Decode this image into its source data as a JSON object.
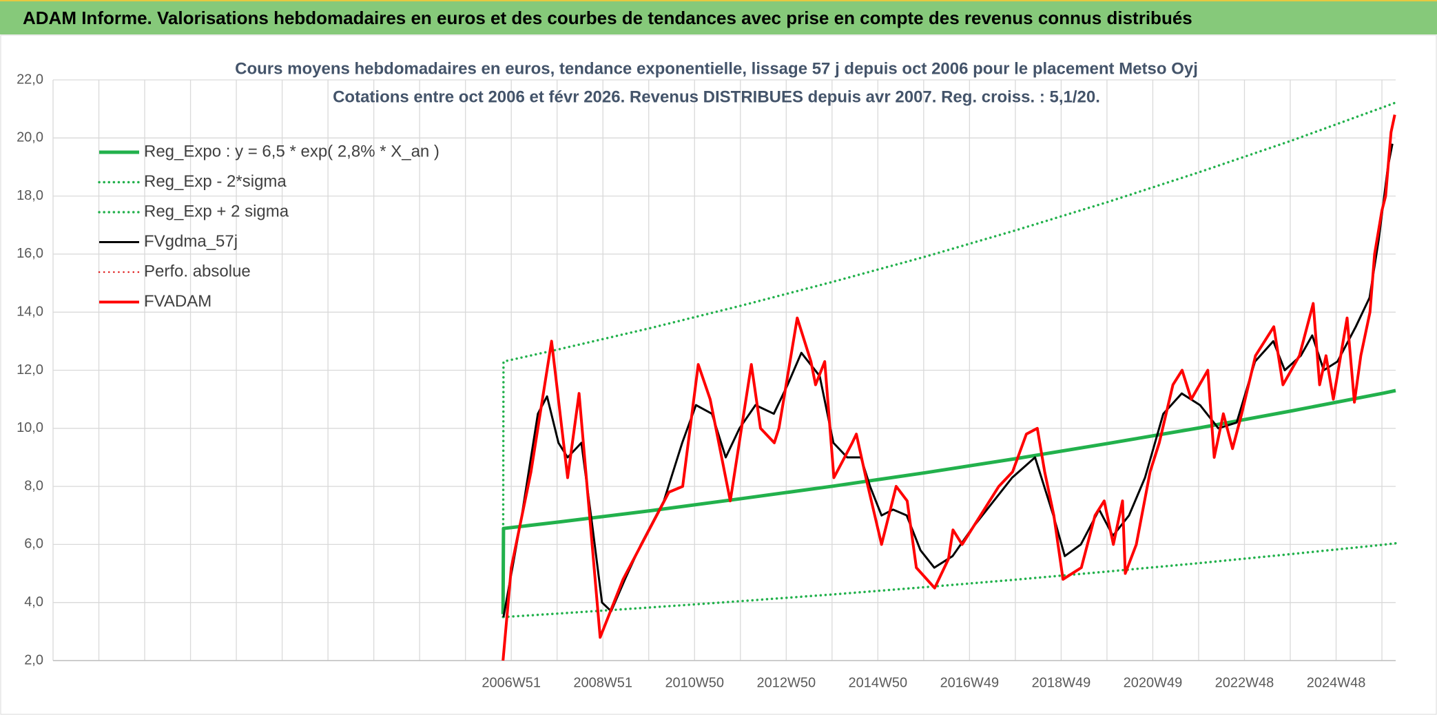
{
  "header": {
    "title": "ADAM Informe. Valorisations hebdomadaires en euros et des courbes de tendances avec prise en compte des revenus connus distribués"
  },
  "chart_data": {
    "type": "line",
    "title": "Cours moyens hebdomadaires en euros, tendance exponentielle, lissage 57 j depuis oct 2006 pour le placement Metso Oyj",
    "subtitle": "Cotations entre oct 2006 et févr 2026. Revenus DISTRIBUES depuis avr 2007. Reg. croiss. : 5,1/20.",
    "xlim": [
      1996.97,
      2026.27
    ],
    "ylim": [
      2,
      22
    ],
    "yticks": [
      {
        "value": 2,
        "label": "2,0"
      },
      {
        "value": 4,
        "label": "4,0"
      },
      {
        "value": 6,
        "label": "6,0"
      },
      {
        "value": 8,
        "label": "8,0"
      },
      {
        "value": 10,
        "label": "10,0"
      },
      {
        "value": 12,
        "label": "12,0"
      },
      {
        "value": 14,
        "label": "14,0"
      },
      {
        "value": 16,
        "label": "16,0"
      },
      {
        "value": 18,
        "label": "18,0"
      },
      {
        "value": 20,
        "label": "20,0"
      },
      {
        "value": 22,
        "label": "22,0"
      }
    ],
    "xticks": [
      {
        "value": 1996.97,
        "label": null
      },
      {
        "value": 1997.97,
        "label": null
      },
      {
        "value": 1998.97,
        "label": null
      },
      {
        "value": 1999.97,
        "label": null
      },
      {
        "value": 2000.97,
        "label": null
      },
      {
        "value": 2001.97,
        "label": null
      },
      {
        "value": 2002.97,
        "label": null
      },
      {
        "value": 2003.97,
        "label": null
      },
      {
        "value": 2004.97,
        "label": null
      },
      {
        "value": 2005.97,
        "label": null
      },
      {
        "value": 2006.97,
        "label": "2006W51"
      },
      {
        "value": 2007.97,
        "label": null
      },
      {
        "value": 2008.97,
        "label": "2008W51"
      },
      {
        "value": 2009.97,
        "label": null
      },
      {
        "value": 2010.97,
        "label": "2010W50"
      },
      {
        "value": 2011.97,
        "label": null
      },
      {
        "value": 2012.97,
        "label": "2012W50"
      },
      {
        "value": 2013.97,
        "label": null
      },
      {
        "value": 2014.97,
        "label": "2014W50"
      },
      {
        "value": 2015.97,
        "label": null
      },
      {
        "value": 2016.97,
        "label": "2016W49"
      },
      {
        "value": 2017.97,
        "label": null
      },
      {
        "value": 2018.97,
        "label": "2018W49"
      },
      {
        "value": 2019.97,
        "label": null
      },
      {
        "value": 2020.97,
        "label": "2020W49"
      },
      {
        "value": 2021.97,
        "label": null
      },
      {
        "value": 2022.97,
        "label": "2022W48"
      },
      {
        "value": 2023.97,
        "label": null
      },
      {
        "value": 2024.97,
        "label": "2024W48"
      },
      {
        "value": 2025.97,
        "label": null
      }
    ],
    "grid": true,
    "legend": "upper left",
    "series": [
      {
        "name": "Reg_Expo : y = 6,5 * exp( 2,8% *  X_an )",
        "color": "#22b14c",
        "style": "solid",
        "x": [
          2006.79,
          2006.8,
          2008,
          2010,
          2012,
          2014,
          2016,
          2018,
          2020,
          2022,
          2024,
          2026,
          2026.27
        ],
        "values": [
          3.6,
          6.55,
          6.77,
          7.16,
          7.58,
          8.01,
          8.47,
          8.96,
          9.48,
          10.02,
          10.6,
          11.21,
          11.3
        ]
      },
      {
        "name": "Reg_Exp - 2*sigma",
        "color": "#22b14c",
        "style": "dotted",
        "x": [
          2006.8,
          2008,
          2010,
          2012,
          2014,
          2016,
          2018,
          2020,
          2022,
          2024,
          2026,
          2026.27
        ],
        "values": [
          3.5,
          3.62,
          3.83,
          4.05,
          4.28,
          4.53,
          4.79,
          5.07,
          5.36,
          5.67,
          5.99,
          6.04
        ]
      },
      {
        "name": "Reg_Exp + 2 sigma",
        "color": "#22b14c",
        "style": "dotted",
        "x": [
          2006.79,
          2006.8,
          2008,
          2010,
          2012,
          2014,
          2016,
          2018,
          2020,
          2022,
          2024,
          2026,
          2026.27
        ],
        "values": [
          3.5,
          12.3,
          12.72,
          13.45,
          14.23,
          15.05,
          15.91,
          16.83,
          17.8,
          18.83,
          19.91,
          21.06,
          21.22
        ]
      },
      {
        "name": "FVgdma_57j",
        "color": "#000000",
        "style": "solid",
        "x": [
          2006.8,
          2007.2,
          2007.55,
          2007.75,
          2008.0,
          2008.2,
          2008.5,
          2008.75,
          2008.95,
          2009.15,
          2009.45,
          2009.8,
          2010.3,
          2010.7,
          2011.0,
          2011.35,
          2011.65,
          2011.95,
          2012.3,
          2012.7,
          2013.0,
          2013.3,
          2013.7,
          2014.0,
          2014.3,
          2014.6,
          2014.8,
          2015.05,
          2015.3,
          2015.6,
          2015.9,
          2016.2,
          2016.6,
          2017.0,
          2017.5,
          2017.9,
          2018.4,
          2018.8,
          2019.05,
          2019.4,
          2019.8,
          2020.1,
          2020.45,
          2020.8,
          2021.2,
          2021.6,
          2022.0,
          2022.4,
          2022.8,
          2023.2,
          2023.6,
          2023.85,
          2024.2,
          2024.45,
          2024.7,
          2025.0,
          2025.4,
          2025.7,
          2025.9,
          2026.1,
          2026.2
        ],
        "values": [
          3.5,
          7.0,
          10.5,
          11.1,
          9.5,
          9.0,
          9.5,
          6.5,
          4.0,
          3.7,
          4.8,
          6.0,
          7.5,
          9.5,
          10.8,
          10.5,
          9.0,
          10.0,
          10.8,
          10.5,
          11.5,
          12.6,
          11.8,
          9.5,
          9.0,
          9.0,
          8.0,
          7.0,
          7.2,
          7.0,
          5.8,
          5.2,
          5.6,
          6.5,
          7.5,
          8.3,
          9.0,
          7.0,
          5.6,
          6.0,
          7.2,
          6.3,
          7.0,
          8.3,
          10.5,
          11.2,
          10.8,
          10.0,
          10.2,
          12.3,
          13.0,
          12.0,
          12.5,
          13.2,
          12.0,
          12.3,
          13.5,
          14.5,
          16.5,
          19.0,
          19.8
        ]
      },
      {
        "name": "Perfo. absolue",
        "color": "#e02020",
        "style": "dotted",
        "x": [],
        "values": []
      },
      {
        "name": "FVADAM",
        "color": "#ff0000",
        "style": "solid",
        "x": [
          2006.79,
          2006.97,
          2007.4,
          2007.85,
          2008.2,
          2008.45,
          2008.91,
          2009.41,
          2009.81,
          2010.41,
          2010.71,
          2011.05,
          2011.31,
          2011.75,
          2012.21,
          2012.41,
          2012.71,
          2012.81,
          2013.21,
          2013.51,
          2013.61,
          2013.81,
          2014.01,
          2014.41,
          2014.5,
          2014.71,
          2015.05,
          2015.37,
          2015.61,
          2015.81,
          2016.21,
          2016.51,
          2016.61,
          2016.81,
          2017.21,
          2017.61,
          2017.91,
          2018.21,
          2018.45,
          2018.61,
          2018.81,
          2019.01,
          2019.41,
          2019.71,
          2019.91,
          2020.11,
          2020.31,
          2020.37,
          2020.61,
          2020.91,
          2021.11,
          2021.41,
          2021.61,
          2021.81,
          2022.17,
          2022.31,
          2022.51,
          2022.71,
          2022.91,
          2023.21,
          2023.61,
          2023.81,
          2024.17,
          2024.47,
          2024.61,
          2024.75,
          2024.91,
          2025.21,
          2025.37,
          2025.51,
          2025.71,
          2025.81,
          2025.97,
          2026.05,
          2026.17,
          2026.25
        ],
        "values": [
          2.0,
          5.2,
          8.5,
          13.0,
          8.3,
          11.2,
          2.8,
          4.8,
          6.0,
          7.8,
          8.0,
          12.2,
          11.0,
          7.5,
          12.2,
          10.0,
          9.5,
          10.0,
          13.8,
          12.3,
          11.5,
          12.3,
          8.3,
          9.5,
          9.8,
          8.3,
          6.0,
          8.0,
          7.5,
          5.2,
          4.5,
          5.5,
          6.5,
          6.0,
          7.0,
          8.0,
          8.5,
          9.8,
          10.0,
          8.5,
          7.0,
          4.8,
          5.2,
          7.0,
          7.5,
          6.0,
          7.5,
          5.0,
          6.0,
          8.5,
          9.5,
          11.5,
          12.0,
          11.0,
          12.0,
          9.0,
          10.5,
          9.3,
          10.5,
          12.5,
          13.5,
          11.5,
          12.5,
          14.3,
          11.5,
          12.5,
          11.0,
          13.8,
          10.9,
          12.5,
          14.0,
          16.0,
          17.5,
          18.0,
          20.2,
          20.8
        ]
      }
    ]
  }
}
